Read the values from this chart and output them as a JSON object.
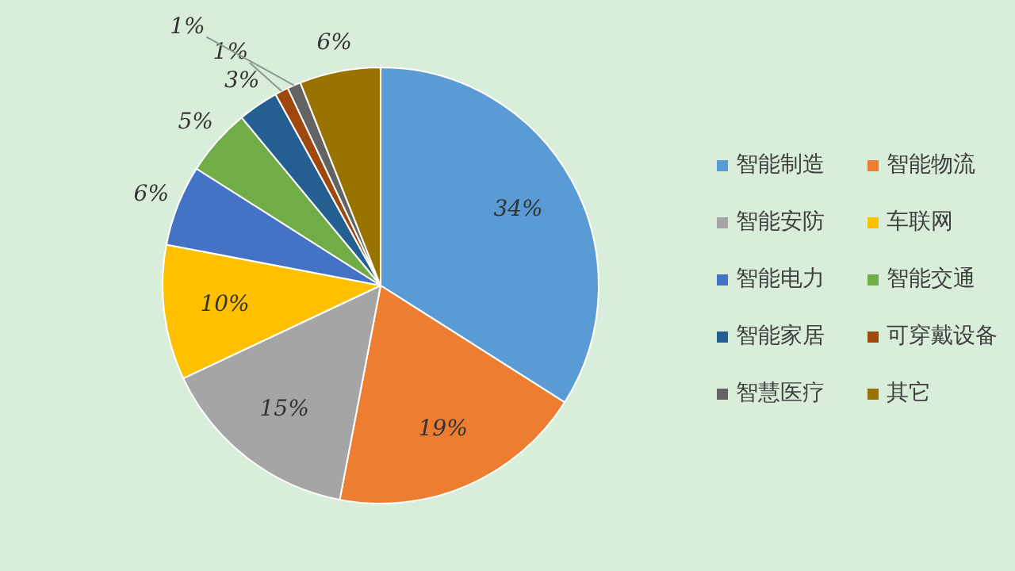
{
  "chart_data": {
    "type": "pie",
    "categories": [
      "智能制造",
      "智能物流",
      "智能安防",
      "车联网",
      "智能电力",
      "智能交通",
      "智能家居",
      "可穿戴设备",
      "智慧医疗",
      "其它"
    ],
    "values": [
      34,
      19,
      15,
      10,
      6,
      5,
      3,
      1,
      1,
      6
    ],
    "colors": [
      "#5b9bd5",
      "#ed7d31",
      "#a5a5a5",
      "#ffc000",
      "#4472c4",
      "#70ad47",
      "#255e91",
      "#9e480e",
      "#636363",
      "#997300"
    ],
    "value_labels": [
      "34%",
      "19%",
      "15%",
      "10%",
      "6%",
      "5%",
      "3%",
      "1%",
      "1%",
      "6%"
    ],
    "legend": "right"
  }
}
